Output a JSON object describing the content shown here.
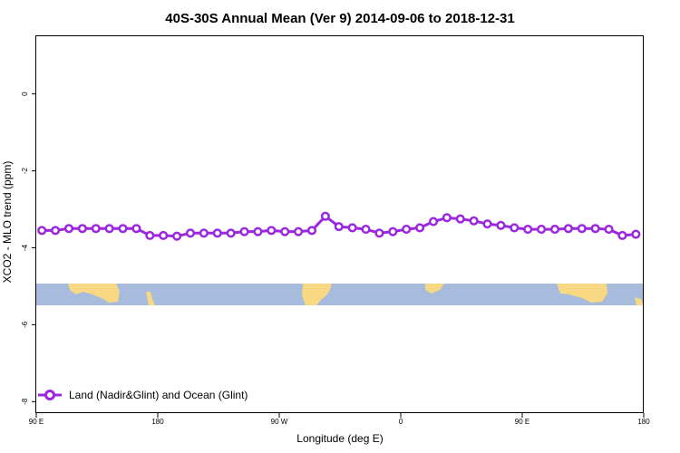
{
  "chart_data": {
    "type": "line",
    "title": "40S-30S Annual Mean (Ver 9)   2014-09-06 to 2018-12-31",
    "xlabel": "Longitude (deg E)",
    "ylabel": "XCO2 - MLO trend (ppm)",
    "xlim": [
      -90,
      180
    ],
    "ylim": [
      -8.3,
      1.5
    ],
    "x_ticks": [
      {
        "value": -90,
        "label": "90 E"
      },
      {
        "value": -36,
        "label": "180"
      },
      {
        "value": 18,
        "label": "90 W"
      },
      {
        "value": 72,
        "label": "0"
      },
      {
        "value": 126,
        "label": "90 E"
      },
      {
        "value": 180,
        "label": "180"
      }
    ],
    "y_ticks": [
      {
        "value": 0,
        "label": "0"
      },
      {
        "value": -2,
        "label": "-2"
      },
      {
        "value": -4,
        "label": "-4"
      },
      {
        "value": -6,
        "label": "-6"
      },
      {
        "value": -8,
        "label": "-8"
      }
    ],
    "grid": false,
    "legend_position": "bottom-left",
    "series": [
      {
        "name": "Land (Nadir&Glint) and Ocean (Glint)",
        "color": "#9b27e0",
        "x": [
          -87.5,
          -81.5,
          -75.5,
          -69.5,
          -63.5,
          -57.5,
          -51.5,
          -45.5,
          -39.5,
          -33.5,
          -27.5,
          -21.5,
          -15.5,
          -9.5,
          -3.5,
          2.5,
          8.5,
          14.5,
          20.5,
          26.5,
          32.5,
          38.5,
          44.5,
          50.5,
          56.5,
          62.5,
          68.5,
          74.5,
          80.5,
          86.5,
          92.5,
          98.5,
          104.5,
          110.5,
          116.5,
          122.5,
          128.5,
          134.5,
          140.5,
          146.5,
          152.5,
          158.5,
          164.5,
          170.5,
          176.5
        ],
        "y": [
          -3.55,
          -3.55,
          -3.5,
          -3.5,
          -3.5,
          -3.5,
          -3.5,
          -3.5,
          -3.68,
          -3.68,
          -3.7,
          -3.62,
          -3.62,
          -3.62,
          -3.62,
          -3.58,
          -3.58,
          -3.55,
          -3.58,
          -3.58,
          -3.55,
          -3.18,
          -3.45,
          -3.48,
          -3.52,
          -3.62,
          -3.58,
          -3.52,
          -3.48,
          -3.32,
          -3.22,
          -3.25,
          -3.3,
          -3.38,
          -3.42,
          -3.48,
          -3.52,
          -3.52,
          -3.52,
          -3.5,
          -3.5,
          -3.5,
          -3.52,
          -3.68,
          -3.65
        ]
      }
    ],
    "colors": {
      "ocean": "#a7bcdc",
      "land": "#f8d882",
      "line": "#9b27e0"
    }
  }
}
